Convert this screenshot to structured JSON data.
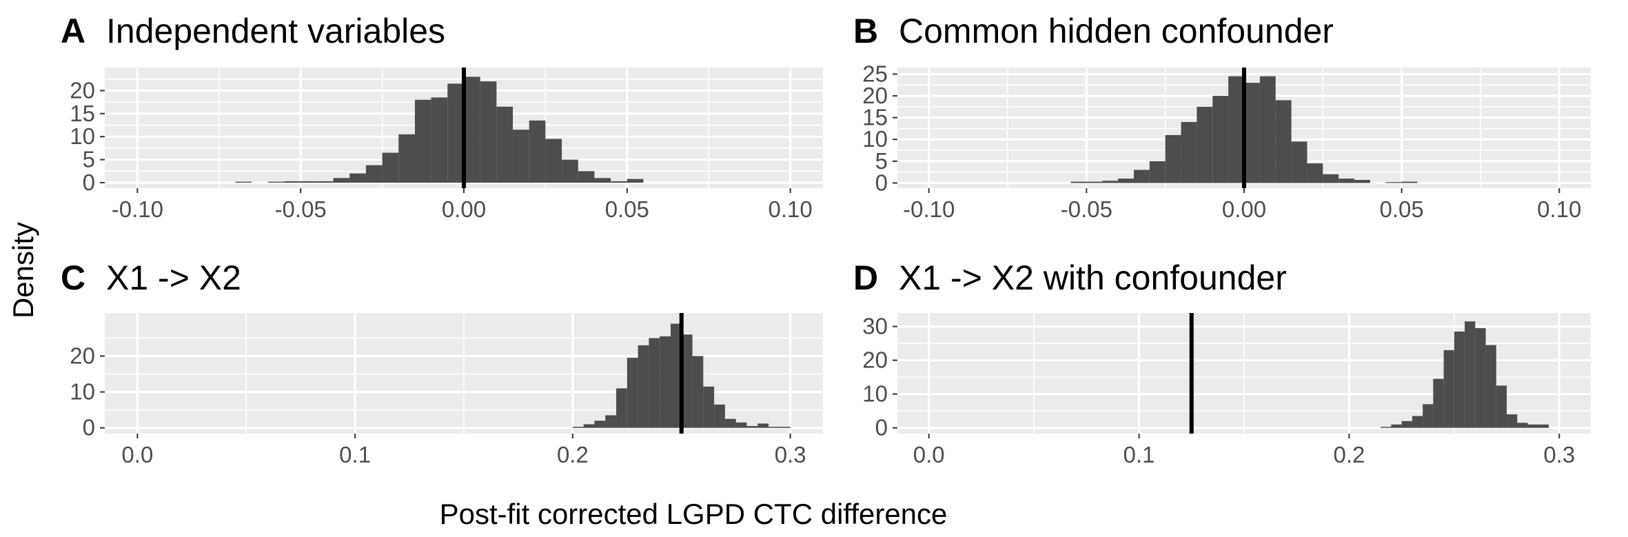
{
  "figure": {
    "y_axis_title": "Density",
    "x_axis_title": "Post-fit corrected LGPD CTC difference",
    "colors": {
      "panel_background": "#ebebeb",
      "gridline": "#ffffff",
      "bar_fill": "#4d4d4d",
      "reference_line": "#000000",
      "tick_text": "#4d4d4d"
    }
  },
  "chart_data": [
    {
      "type": "bar",
      "panel": "A",
      "title": "Independent variables",
      "xlim": [
        -0.11,
        0.11
      ],
      "ylim": [
        -1.2,
        25
      ],
      "x_ticks": [
        -0.1,
        -0.05,
        0.0,
        0.05,
        0.1
      ],
      "x_tick_labels": [
        "-0.10",
        "-0.05",
        "0.00",
        "0.05",
        "0.10"
      ],
      "y_ticks": [
        0,
        5,
        10,
        15,
        20
      ],
      "y_tick_labels": [
        "0",
        "5",
        "10",
        "15",
        "20"
      ],
      "reference_line_x": 0.0,
      "bin_width": 0.005,
      "bins_start": [
        -0.07,
        -0.065,
        -0.06,
        -0.055,
        -0.05,
        -0.045,
        -0.04,
        -0.035,
        -0.03,
        -0.025,
        -0.02,
        -0.015,
        -0.01,
        -0.005,
        0.0,
        0.005,
        0.01,
        0.015,
        0.02,
        0.025,
        0.03,
        0.035,
        0.04,
        0.045,
        0.05
      ],
      "values": [
        0.2,
        0.0,
        0.2,
        0.3,
        0.3,
        0.3,
        1.0,
        2.0,
        3.8,
        6.5,
        10.5,
        18.0,
        18.5,
        21.5,
        23.0,
        22.0,
        16.5,
        11.5,
        13.5,
        9.5,
        5.0,
        2.5,
        1.0,
        0.3,
        0.8
      ]
    },
    {
      "type": "bar",
      "panel": "B",
      "title": "Common hidden confounder",
      "xlim": [
        -0.11,
        0.11
      ],
      "ylim": [
        -1.2,
        26.5
      ],
      "x_ticks": [
        -0.1,
        -0.05,
        0.0,
        0.05,
        0.1
      ],
      "x_tick_labels": [
        "-0.10",
        "-0.05",
        "0.00",
        "0.05",
        "0.10"
      ],
      "y_ticks": [
        0,
        5,
        10,
        15,
        20,
        25
      ],
      "y_tick_labels": [
        "0",
        "5",
        "10",
        "15",
        "20",
        "25"
      ],
      "reference_line_x": 0.0,
      "bin_width": 0.005,
      "bins_start": [
        -0.055,
        -0.05,
        -0.045,
        -0.04,
        -0.035,
        -0.03,
        -0.025,
        -0.02,
        -0.015,
        -0.01,
        -0.005,
        0.0,
        0.005,
        0.01,
        0.015,
        0.02,
        0.025,
        0.03,
        0.035,
        0.04,
        0.045,
        0.05
      ],
      "values": [
        0.3,
        0.3,
        0.5,
        1.0,
        3.0,
        5.0,
        11.0,
        14.0,
        17.5,
        20.0,
        24.5,
        23.0,
        24.5,
        19.0,
        9.5,
        4.5,
        2.0,
        1.0,
        0.7,
        0.0,
        0.2,
        0.3
      ]
    },
    {
      "type": "bar",
      "panel": "C",
      "title": "X1 -> X2",
      "xlim": [
        -0.015,
        0.315
      ],
      "ylim": [
        -1.6,
        32
      ],
      "x_ticks": [
        0.0,
        0.1,
        0.2,
        0.3
      ],
      "x_tick_labels": [
        "0.0",
        "0.1",
        "0.2",
        "0.3"
      ],
      "y_ticks": [
        0,
        10,
        20
      ],
      "y_tick_labels": [
        "0",
        "10",
        "20"
      ],
      "reference_line_x": 0.25,
      "bin_width": 0.005,
      "bins_start": [
        0.2,
        0.205,
        0.21,
        0.215,
        0.22,
        0.225,
        0.23,
        0.235,
        0.24,
        0.245,
        0.25,
        0.255,
        0.26,
        0.265,
        0.27,
        0.275,
        0.28,
        0.285,
        0.29,
        0.295
      ],
      "values": [
        0.3,
        1.0,
        2.0,
        3.5,
        11.0,
        19.5,
        23.0,
        25.0,
        25.5,
        29.0,
        26.0,
        20.0,
        11.5,
        6.5,
        2.5,
        1.5,
        0.5,
        1.2,
        0.3,
        0.3
      ]
    },
    {
      "type": "bar",
      "panel": "D",
      "title": "X1 -> X2 with confounder",
      "xlim": [
        -0.015,
        0.315
      ],
      "ylim": [
        -1.7,
        34
      ],
      "x_ticks": [
        0.0,
        0.1,
        0.2,
        0.3
      ],
      "x_tick_labels": [
        "0.0",
        "0.1",
        "0.2",
        "0.3"
      ],
      "y_ticks": [
        0,
        10,
        20,
        30
      ],
      "y_tick_labels": [
        "0",
        "10",
        "20",
        "30"
      ],
      "reference_line_x": 0.125,
      "bin_width": 0.005,
      "bins_start": [
        0.215,
        0.22,
        0.225,
        0.23,
        0.235,
        0.24,
        0.245,
        0.25,
        0.255,
        0.26,
        0.265,
        0.27,
        0.275,
        0.28,
        0.285,
        0.29
      ],
      "values": [
        0.3,
        1.0,
        2.0,
        3.5,
        7.0,
        14.5,
        23.0,
        28.5,
        31.5,
        29.5,
        24.5,
        12.5,
        4.0,
        1.5,
        1.0,
        1.0
      ]
    }
  ]
}
